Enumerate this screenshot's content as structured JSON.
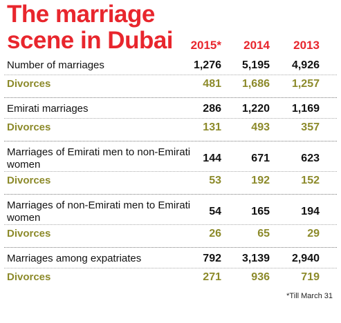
{
  "title_line1": "The marriage",
  "title_line2": "scene in Dubai",
  "footnote": "*Till March 31",
  "colors": {
    "title": "#e8262d",
    "divorces": "#8c8a2a",
    "text": "#111111"
  },
  "chart_data": {
    "type": "table",
    "title": "The marriage scene in Dubai",
    "columns": [
      "2015*",
      "2014",
      "2013"
    ],
    "groups": [
      {
        "label": "Number of marriages",
        "values": [
          "1,276",
          "5,195",
          "4,926"
        ],
        "divorce_label": "Divorces",
        "divorces": [
          "481",
          "1,686",
          "1,257"
        ]
      },
      {
        "label": "Emirati marriages",
        "values": [
          "286",
          "1,220",
          "1,169"
        ],
        "divorce_label": "Divorces",
        "divorces": [
          "131",
          "493",
          "357"
        ]
      },
      {
        "label": "Marriages of Emirati men to non-Emirati women",
        "values": [
          "144",
          "671",
          "623"
        ],
        "divorce_label": "Divorces",
        "divorces": [
          "53",
          "192",
          "152"
        ]
      },
      {
        "label": "Marriages of non-Emirati men to Emirati women",
        "values": [
          "54",
          "165",
          "194"
        ],
        "divorce_label": "Divorces",
        "divorces": [
          "26",
          "65",
          "29"
        ]
      },
      {
        "label": "Marriages among expatriates",
        "values": [
          "792",
          "3,139",
          "2,940"
        ],
        "divorce_label": "Divorces",
        "divorces": [
          "271",
          "936",
          "719"
        ]
      }
    ]
  }
}
